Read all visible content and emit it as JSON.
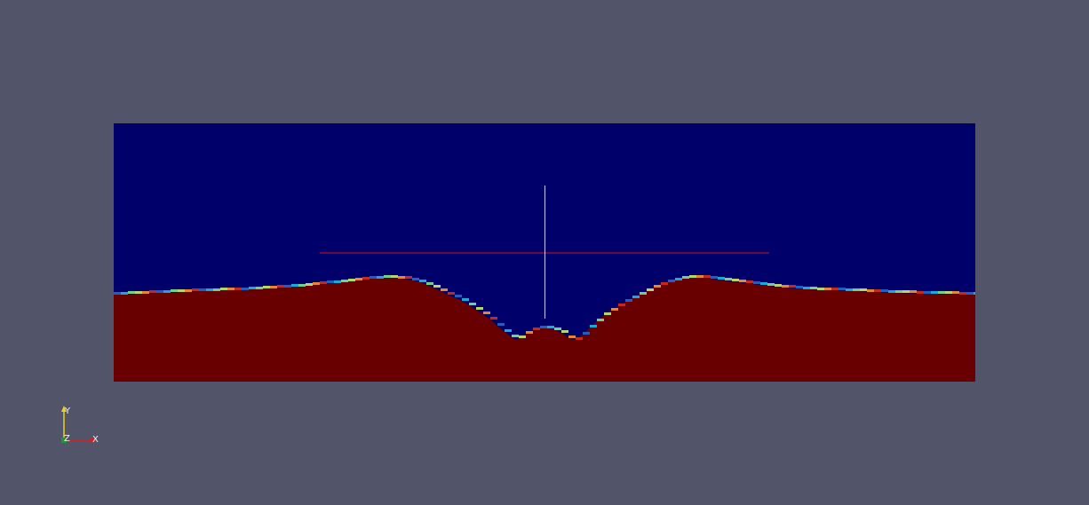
{
  "viewport": {
    "background_color": "#525569"
  },
  "render": {
    "water_color": "#00006a",
    "sediment_color": "#680000",
    "probe_vertical_color": "#f2e23a",
    "probe_horizontal_color": "#cc1a1a",
    "interface_colors": [
      "#1f5fc4",
      "#1aa8d6",
      "#6fd28c",
      "#b7d66a",
      "#e08a2a",
      "#c42a1a"
    ]
  },
  "orientation_axes": {
    "x_label": "X",
    "y_label": "Y",
    "z_label": "Z",
    "x_color": "#d42020",
    "y_color": "#e8d22a",
    "z_color": "#1a9a2a"
  }
}
